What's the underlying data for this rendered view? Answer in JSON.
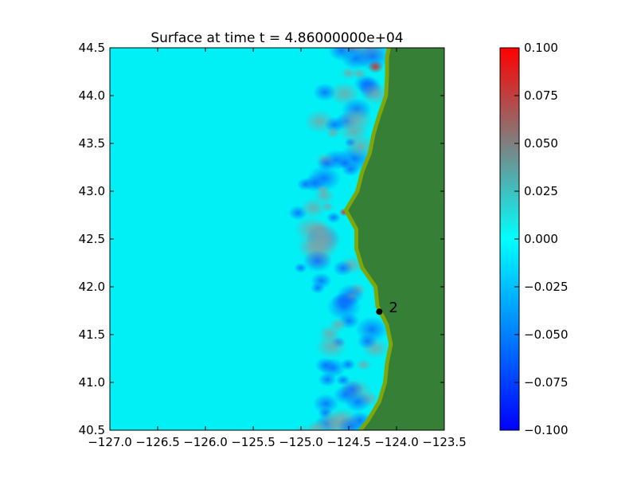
{
  "chart_data": {
    "type": "heatmap",
    "title": "Surface at time t = 4.86000000e+04",
    "xlabel": "",
    "ylabel": "",
    "xlim": [
      -127.0,
      -123.5
    ],
    "ylim": [
      40.5,
      44.5
    ],
    "x_ticks": [
      -127.0,
      -126.5,
      -126.0,
      -125.5,
      -125.0,
      -124.5,
      -124.0,
      -123.5
    ],
    "x_tick_labels": [
      "−127.0",
      "−126.5",
      "−126.0",
      "−125.5",
      "−125.0",
      "−124.5",
      "−124.0",
      "−123.5"
    ],
    "y_ticks": [
      40.5,
      41.0,
      41.5,
      42.0,
      42.5,
      43.0,
      43.5,
      44.0,
      44.5
    ],
    "y_tick_labels": [
      "40.5",
      "41.0",
      "41.5",
      "42.0",
      "42.5",
      "43.0",
      "43.5",
      "44.0",
      "44.5"
    ],
    "colorbar": {
      "range": [
        -0.1,
        0.1
      ],
      "ticks": [
        -0.1,
        -0.075,
        -0.05,
        -0.025,
        0.0,
        0.025,
        0.05,
        0.075,
        0.1
      ],
      "tick_labels": [
        "−0.100",
        "−0.075",
        "−0.050",
        "−0.025",
        "0.000",
        "0.025",
        "0.050",
        "0.075",
        "0.100"
      ],
      "colors": [
        "#0000ff",
        "#00ffff",
        "#ff0000"
      ]
    },
    "background_value": 0.0,
    "land_color": "#357f36",
    "land_highlight_color": "#7fa70a",
    "coastline": [
      [
        44.5,
        -124.08
      ],
      [
        44.4,
        -124.1
      ],
      [
        44.2,
        -124.1
      ],
      [
        44.0,
        -124.11
      ],
      [
        43.8,
        -124.18
      ],
      [
        43.6,
        -124.24
      ],
      [
        43.4,
        -124.28
      ],
      [
        43.2,
        -124.36
      ],
      [
        43.0,
        -124.41
      ],
      [
        42.8,
        -124.53
      ],
      [
        42.6,
        -124.42
      ],
      [
        42.4,
        -124.42
      ],
      [
        42.2,
        -124.36
      ],
      [
        42.0,
        -124.22
      ],
      [
        41.8,
        -124.2
      ],
      [
        41.6,
        -124.1
      ],
      [
        41.4,
        -124.06
      ],
      [
        41.2,
        -124.1
      ],
      [
        41.0,
        -124.12
      ],
      [
        40.8,
        -124.18
      ],
      [
        40.6,
        -124.3
      ],
      [
        40.5,
        -124.38
      ]
    ],
    "gauges": [
      {
        "label": "2",
        "x": -124.18,
        "y": 41.74
      }
    ]
  }
}
